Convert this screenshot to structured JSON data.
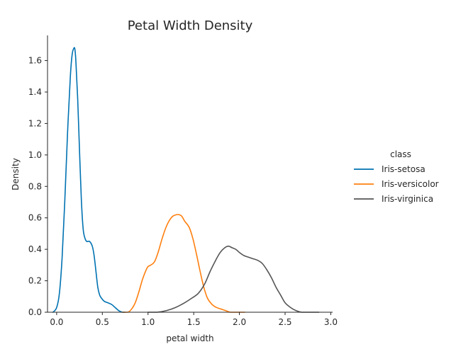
{
  "chart_data": {
    "type": "line",
    "title": "Petal Width Density",
    "xlabel": "petal width",
    "ylabel": "Density",
    "xlim": [
      -0.1,
      3.02
    ],
    "ylim": [
      0,
      1.76
    ],
    "xticks": [
      0.0,
      0.5,
      1.0,
      1.5,
      2.0,
      2.5,
      3.0
    ],
    "xtick_labels": [
      "0.0",
      "0.5",
      "1.0",
      "1.5",
      "2.0",
      "2.5",
      "3.0"
    ],
    "yticks": [
      0.0,
      0.2,
      0.4,
      0.6,
      0.8,
      1.0,
      1.2,
      1.4,
      1.6
    ],
    "ytick_labels": [
      "0.0",
      "0.2",
      "0.4",
      "0.6",
      "0.8",
      "1.0",
      "1.2",
      "1.4",
      "1.6"
    ],
    "grid": false,
    "legend": {
      "title": "class",
      "placement": "right"
    },
    "series": [
      {
        "name": "Iris-setosa",
        "color": "#0072b2",
        "x": [
          -0.04,
          0.0,
          0.03,
          0.06,
          0.09,
          0.12,
          0.15,
          0.17,
          0.19,
          0.2,
          0.21,
          0.23,
          0.25,
          0.27,
          0.29,
          0.31,
          0.33,
          0.36,
          0.39,
          0.41,
          0.43,
          0.45,
          0.47,
          0.49,
          0.52,
          0.56,
          0.6,
          0.64,
          0.68,
          0.72,
          0.75
        ],
        "y": [
          0.0,
          0.03,
          0.12,
          0.35,
          0.72,
          1.15,
          1.5,
          1.64,
          1.68,
          1.67,
          1.6,
          1.36,
          1.03,
          0.72,
          0.53,
          0.47,
          0.45,
          0.45,
          0.42,
          0.36,
          0.26,
          0.16,
          0.11,
          0.09,
          0.07,
          0.06,
          0.05,
          0.03,
          0.01,
          0.0,
          0.0
        ]
      },
      {
        "name": "Iris-versicolor",
        "color": "#ff7f0e",
        "x": [
          0.72,
          0.78,
          0.82,
          0.86,
          0.9,
          0.94,
          0.98,
          1.0,
          1.03,
          1.07,
          1.11,
          1.15,
          1.19,
          1.23,
          1.27,
          1.31,
          1.34,
          1.37,
          1.4,
          1.45,
          1.49,
          1.53,
          1.57,
          1.61,
          1.65,
          1.7,
          1.75,
          1.8,
          1.85,
          1.9,
          1.95,
          2.0,
          2.06
        ],
        "y": [
          0.0,
          0.0,
          0.02,
          0.06,
          0.13,
          0.21,
          0.27,
          0.29,
          0.3,
          0.32,
          0.38,
          0.46,
          0.53,
          0.58,
          0.61,
          0.62,
          0.62,
          0.61,
          0.58,
          0.54,
          0.47,
          0.37,
          0.26,
          0.16,
          0.09,
          0.05,
          0.03,
          0.02,
          0.01,
          0.0,
          0.0,
          0.0,
          0.0
        ]
      },
      {
        "name": "Iris-virginica",
        "color": "#555555",
        "x": [
          1.0,
          1.1,
          1.2,
          1.3,
          1.4,
          1.48,
          1.55,
          1.62,
          1.68,
          1.74,
          1.79,
          1.84,
          1.88,
          1.92,
          1.96,
          2.0,
          2.05,
          2.1,
          2.15,
          2.2,
          2.25,
          2.3,
          2.35,
          2.4,
          2.45,
          2.5,
          2.56,
          2.62,
          2.68,
          2.74,
          2.8,
          2.87
        ],
        "y": [
          0.0,
          0.0,
          0.01,
          0.03,
          0.06,
          0.09,
          0.12,
          0.18,
          0.26,
          0.33,
          0.38,
          0.41,
          0.42,
          0.41,
          0.4,
          0.38,
          0.36,
          0.35,
          0.34,
          0.33,
          0.31,
          0.27,
          0.22,
          0.16,
          0.11,
          0.06,
          0.03,
          0.01,
          0.0,
          0.0,
          0.0,
          0.0
        ]
      }
    ]
  }
}
